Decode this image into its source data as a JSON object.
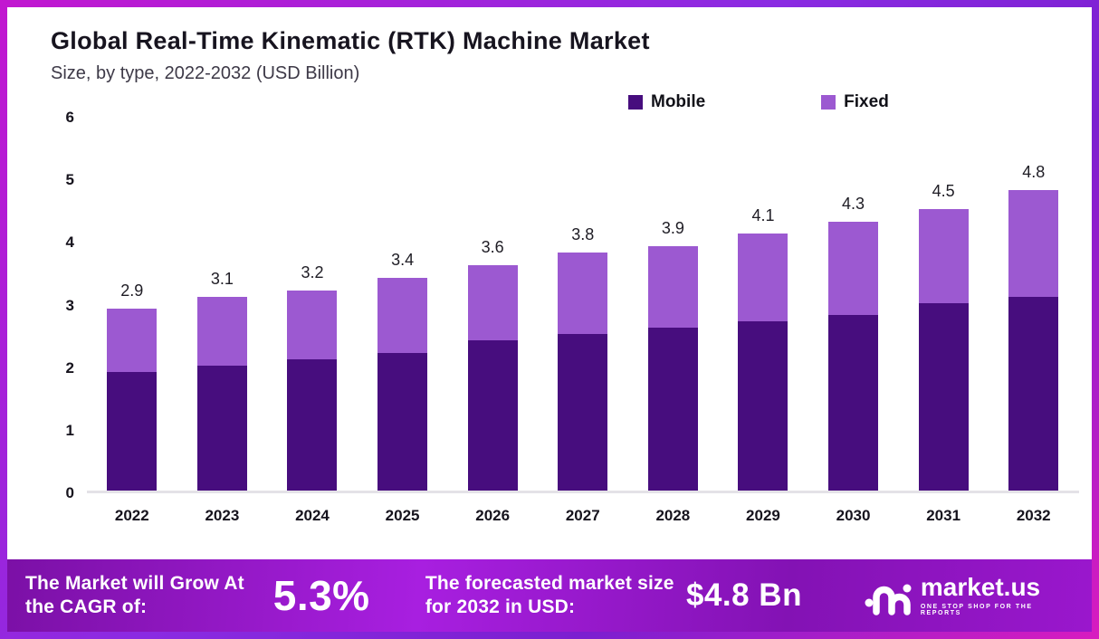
{
  "header": {
    "title": "Global Real-Time Kinematic (RTK) Machine Market",
    "subtitle": "Size, by type, 2022-2032 (USD Billion)"
  },
  "legend": [
    {
      "label": "Mobile",
      "color": "#470d7e"
    },
    {
      "label": "Fixed",
      "color": "#9c59d1"
    }
  ],
  "chart_data": {
    "type": "bar",
    "stacked": true,
    "title": "Global Real-Time Kinematic (RTK) Machine Market",
    "subtitle": "Size, by type, 2022-2032 (USD Billion)",
    "xlabel": "",
    "ylabel": "",
    "ylim": [
      0,
      6
    ],
    "yticks": [
      0,
      1,
      2,
      3,
      4,
      5,
      6
    ],
    "grid": false,
    "legend_position": "top",
    "categories": [
      "2022",
      "2023",
      "2024",
      "2025",
      "2026",
      "2027",
      "2028",
      "2029",
      "2030",
      "2031",
      "2032"
    ],
    "series": [
      {
        "name": "Mobile",
        "color": "#470d7e",
        "values": [
          1.9,
          2.0,
          2.1,
          2.2,
          2.4,
          2.5,
          2.6,
          2.7,
          2.8,
          3.0,
          3.1
        ]
      },
      {
        "name": "Fixed",
        "color": "#9c59d1",
        "values": [
          1.0,
          1.1,
          1.1,
          1.2,
          1.2,
          1.3,
          1.3,
          1.4,
          1.5,
          1.5,
          1.7
        ]
      }
    ],
    "totals": [
      2.9,
      3.1,
      3.2,
      3.4,
      3.6,
      3.8,
      3.9,
      4.1,
      4.3,
      4.5,
      4.8
    ],
    "total_labels": [
      "2.9",
      "3.1",
      "3.2",
      "3.4",
      "3.6",
      "3.8",
      "3.9",
      "4.1",
      "4.3",
      "4.5",
      "4.8"
    ]
  },
  "footer": {
    "cagr_label": "The Market will Grow At the CAGR of:",
    "cagr_value": "5.3%",
    "forecast_label": "The forecasted market size for 2032 in USD:",
    "forecast_value": "$4.8 Bn",
    "brand_name": "market.us",
    "brand_tagline": "ONE STOP SHOP FOR THE REPORTS"
  }
}
